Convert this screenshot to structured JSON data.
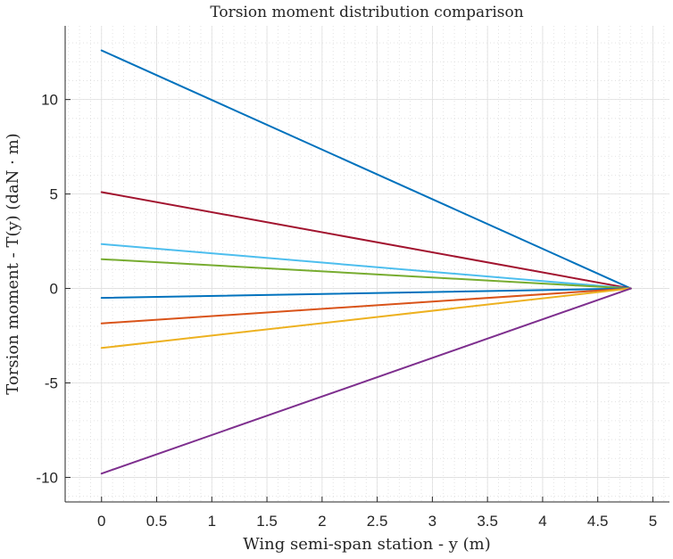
{
  "chart_data": {
    "type": "line",
    "title": "Torsion moment distribution comparison",
    "xlabel": "Wing semi-span station - y (m)",
    "ylabel": "Torsion moment - T(y) (daN · m)",
    "xlim": [
      -0.33,
      5.15
    ],
    "ylim": [
      -11.3,
      13.9
    ],
    "xticks": [
      0,
      0.5,
      1,
      1.5,
      2,
      2.5,
      3,
      3.5,
      4,
      4.5,
      5
    ],
    "xtick_labels": [
      "0",
      "0.5",
      "1",
      "1.5",
      "2",
      "2.5",
      "3",
      "3.5",
      "4",
      "4.5",
      "5"
    ],
    "yticks": [
      -10,
      -5,
      0,
      5,
      10
    ],
    "ytick_labels": [
      "-10",
      "-5",
      "0",
      "5",
      "10"
    ],
    "grid": true,
    "minor_grid": true,
    "series": [
      {
        "color": "#0072BD",
        "x": [
          0,
          4.8
        ],
        "y": [
          12.6,
          0
        ]
      },
      {
        "color": "#A2142F",
        "x": [
          0,
          4.8
        ],
        "y": [
          5.1,
          0
        ]
      },
      {
        "color": "#4DBEEE",
        "x": [
          0,
          4.8
        ],
        "y": [
          2.35,
          0
        ]
      },
      {
        "color": "#77AC30",
        "x": [
          0,
          4.8
        ],
        "y": [
          1.55,
          0
        ]
      },
      {
        "color": "#0072BD",
        "x": [
          0,
          4.8
        ],
        "y": [
          -0.5,
          0
        ]
      },
      {
        "color": "#D95319",
        "x": [
          0,
          4.8
        ],
        "y": [
          -1.85,
          0
        ]
      },
      {
        "color": "#EDB120",
        "x": [
          0,
          4.8
        ],
        "y": [
          -3.15,
          0
        ]
      },
      {
        "color": "#7E2F8E",
        "x": [
          0,
          4.8
        ],
        "y": [
          -9.8,
          0
        ]
      }
    ]
  }
}
